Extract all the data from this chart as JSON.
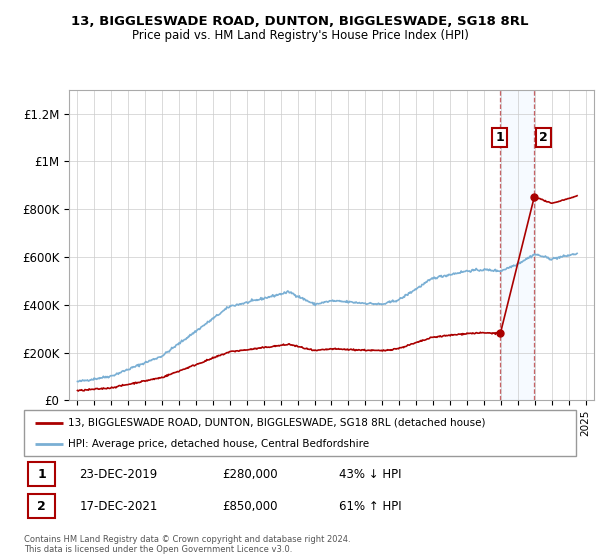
{
  "title": "13, BIGGLESWADE ROAD, DUNTON, BIGGLESWADE, SG18 8RL",
  "subtitle": "Price paid vs. HM Land Registry's House Price Index (HPI)",
  "ylabel_ticks": [
    "£0",
    "£200K",
    "£400K",
    "£600K",
    "£800K",
    "£1M",
    "£1.2M"
  ],
  "ylim": [
    0,
    1300000
  ],
  "yticks": [
    0,
    200000,
    400000,
    600000,
    800000,
    1000000,
    1200000
  ],
  "xlim_start": 1994.5,
  "xlim_end": 2025.5,
  "sale1_date": 2019.97,
  "sale1_price": 280000,
  "sale2_date": 2021.97,
  "sale2_price": 850000,
  "legend_line1": "13, BIGGLESWADE ROAD, DUNTON, BIGGLESWADE, SG18 8RL (detached house)",
  "legend_line2": "HPI: Average price, detached house, Central Bedfordshire",
  "footer": "Contains HM Land Registry data © Crown copyright and database right 2024.\nThis data is licensed under the Open Government Licence v3.0.",
  "table_row1": [
    "1",
    "23-DEC-2019",
    "£280,000",
    "43% ↓ HPI"
  ],
  "table_row2": [
    "2",
    "17-DEC-2021",
    "£850,000",
    "61% ↑ HPI"
  ],
  "hpi_color": "#7aafd4",
  "price_color": "#aa0000",
  "shade_color": "#ddeeff",
  "background_color": "#ffffff",
  "grid_color": "#cccccc"
}
